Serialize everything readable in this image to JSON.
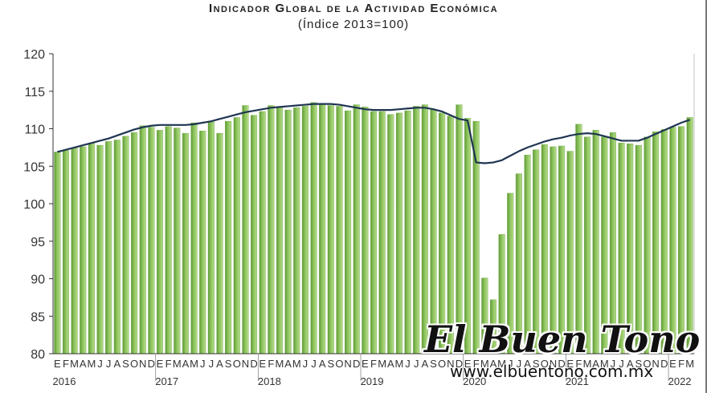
{
  "title": "Indicador Global de la Actividad Económica",
  "subtitle": "(Índice 2013=100)",
  "watermark": {
    "logo": "El Buen Tono",
    "url": "www.elbuentono.com.mx"
  },
  "colors": {
    "bar": "#8dc35b",
    "bar_edge": "#5e9a38",
    "trend": "#1f3552",
    "axis": "#333333"
  },
  "chart_data": {
    "type": "bar",
    "title": "Indicador Global de la Actividad Económica",
    "subtitle": "(Índice 2013=100)",
    "ylim": [
      80,
      120
    ],
    "yticks": [
      80,
      85,
      90,
      95,
      100,
      105,
      110,
      115,
      120
    ],
    "grid": false,
    "month_letters": [
      "E",
      "F",
      "M",
      "A",
      "M",
      "J",
      "J",
      "A",
      "S",
      "O",
      "N",
      "D"
    ],
    "year_labels": [
      "2016",
      "2017",
      "2018",
      "2019",
      "2020",
      "2021",
      "2022"
    ],
    "series": [
      {
        "name": "",
        "type": "bar",
        "values": [
          106.9,
          107.1,
          107.4,
          107.6,
          108.1,
          107.8,
          108.3,
          108.5,
          109.0,
          109.5,
          110.4,
          110.2,
          109.8,
          110.3,
          110.1,
          109.4,
          110.8,
          109.7,
          110.9,
          109.4,
          111.0,
          111.5,
          113.1,
          111.8,
          112.3,
          113.1,
          112.9,
          112.5,
          112.8,
          113.0,
          113.5,
          113.3,
          113.1,
          113.0,
          112.4,
          113.2,
          112.9,
          112.3,
          112.3,
          111.9,
          112.1,
          112.4,
          113.0,
          113.2,
          112.6,
          112.1,
          111.7,
          113.2,
          111.4,
          111.0,
          90.1,
          87.2,
          95.9,
          101.4,
          104.0,
          106.5,
          107.2,
          107.9,
          107.6,
          107.7,
          107.0,
          110.6,
          108.9,
          109.8,
          108.9,
          109.5,
          108.1,
          108.0,
          107.8,
          108.9,
          109.6,
          109.9,
          110.2,
          110.3,
          111.5
        ]
      },
      {
        "name": "",
        "type": "line",
        "values": [
          106.9,
          107.2,
          107.5,
          107.8,
          108.1,
          108.4,
          108.7,
          109.1,
          109.5,
          109.9,
          110.2,
          110.4,
          110.5,
          110.5,
          110.5,
          110.5,
          110.6,
          110.8,
          111.0,
          111.3,
          111.6,
          111.9,
          112.2,
          112.4,
          112.6,
          112.8,
          112.9,
          113.0,
          113.1,
          113.2,
          113.3,
          113.3,
          113.3,
          113.2,
          113.0,
          112.8,
          112.6,
          112.5,
          112.5,
          112.5,
          112.6,
          112.7,
          112.8,
          112.8,
          112.6,
          112.3,
          111.8,
          111.3,
          111.1,
          105.5,
          105.4,
          105.5,
          105.8,
          106.4,
          107.0,
          107.5,
          107.9,
          108.3,
          108.6,
          108.8,
          109.1,
          109.3,
          109.4,
          109.3,
          109.0,
          108.7,
          108.4,
          108.4,
          108.4,
          108.8,
          109.3,
          109.8,
          110.3,
          110.8,
          111.2
        ]
      }
    ]
  }
}
